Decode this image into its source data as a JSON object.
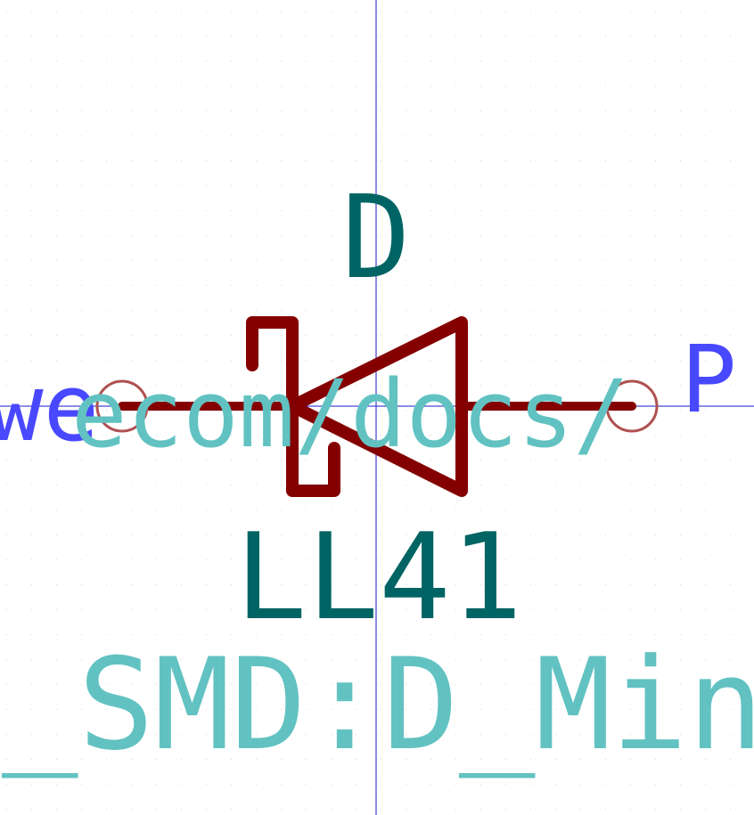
{
  "symbol": {
    "reference": "D",
    "value": "LL41",
    "footprint_text": "_SMD:D_Min",
    "url_text": "ecom/docs/",
    "pin_left_name": "we",
    "pin_right_name": "P",
    "pin_right_suffix": "/"
  },
  "colors": {
    "background": "#ffffff",
    "grid_dot": "#c8c8c8",
    "crosshair": "#1a1acc",
    "body": "#840000",
    "pin_circle": "#b05050",
    "reference_text": "#006464",
    "footprint_text": "#62c2c2",
    "pin_name_text": "#4848ff"
  }
}
